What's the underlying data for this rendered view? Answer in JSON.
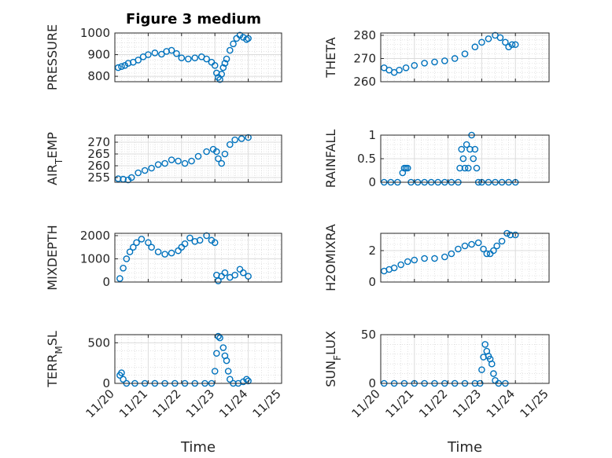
{
  "title": "Figure 3 medium",
  "chart_data": {
    "type": "scatter",
    "marker_color": "#0072BD",
    "x_ticks": [
      "11/20",
      "11/21",
      "11/22",
      "11/23",
      "11/24",
      "11/25"
    ],
    "xlabel": "Time",
    "grid": true,
    "panels": [
      {
        "ylabel": "PRESSURE",
        "ylim": [
          775,
          1000
        ],
        "yticks": [
          800,
          900,
          1000
        ],
        "points": [
          [
            0.1,
            840
          ],
          [
            0.2,
            845
          ],
          [
            0.3,
            850
          ],
          [
            0.4,
            860
          ],
          [
            0.55,
            865
          ],
          [
            0.7,
            875
          ],
          [
            0.85,
            890
          ],
          [
            1.0,
            900
          ],
          [
            1.2,
            908
          ],
          [
            1.4,
            902
          ],
          [
            1.55,
            915
          ],
          [
            1.7,
            920
          ],
          [
            1.85,
            905
          ],
          [
            2.0,
            885
          ],
          [
            2.2,
            880
          ],
          [
            2.4,
            885
          ],
          [
            2.6,
            890
          ],
          [
            2.75,
            880
          ],
          [
            2.9,
            865
          ],
          [
            3.0,
            850
          ],
          [
            3.05,
            815
          ],
          [
            3.1,
            795
          ],
          [
            3.15,
            785
          ],
          [
            3.2,
            810
          ],
          [
            3.25,
            840
          ],
          [
            3.3,
            860
          ],
          [
            3.35,
            880
          ],
          [
            3.45,
            920
          ],
          [
            3.55,
            950
          ],
          [
            3.65,
            975
          ],
          [
            3.75,
            990
          ],
          [
            3.85,
            980
          ],
          [
            3.95,
            970
          ],
          [
            4.0,
            975
          ]
        ]
      },
      {
        "ylabel": "THETA",
        "ylim": [
          260,
          281
        ],
        "yticks": [
          260,
          270,
          280
        ],
        "points": [
          [
            0.1,
            266
          ],
          [
            0.25,
            265
          ],
          [
            0.4,
            264
          ],
          [
            0.55,
            265
          ],
          [
            0.75,
            266
          ],
          [
            1.0,
            267
          ],
          [
            1.3,
            268
          ],
          [
            1.6,
            268.5
          ],
          [
            1.9,
            269
          ],
          [
            2.2,
            270
          ],
          [
            2.5,
            272
          ],
          [
            2.8,
            275
          ],
          [
            3.0,
            277
          ],
          [
            3.2,
            278.5
          ],
          [
            3.4,
            280
          ],
          [
            3.55,
            279
          ],
          [
            3.7,
            277
          ],
          [
            3.8,
            275
          ],
          [
            3.9,
            276
          ],
          [
            4.0,
            276
          ]
        ]
      },
      {
        "ylabel": "AIR_TEMP",
        "ylim": [
          253,
          273
        ],
        "yticks": [
          255,
          260,
          265,
          270
        ],
        "points": [
          [
            0.1,
            254.5
          ],
          [
            0.25,
            254.3
          ],
          [
            0.4,
            254.0
          ],
          [
            0.5,
            255
          ],
          [
            0.7,
            257
          ],
          [
            0.9,
            258
          ],
          [
            1.1,
            259
          ],
          [
            1.3,
            260.5
          ],
          [
            1.5,
            261
          ],
          [
            1.7,
            262.5
          ],
          [
            1.9,
            262
          ],
          [
            2.1,
            261
          ],
          [
            2.3,
            262
          ],
          [
            2.5,
            264
          ],
          [
            2.75,
            266
          ],
          [
            2.95,
            267
          ],
          [
            3.05,
            266
          ],
          [
            3.1,
            263
          ],
          [
            3.2,
            261
          ],
          [
            3.3,
            265
          ],
          [
            3.45,
            269
          ],
          [
            3.6,
            271
          ],
          [
            3.8,
            271.5
          ],
          [
            4.0,
            272
          ]
        ]
      },
      {
        "ylabel": "RAINFALL",
        "ylim": [
          0,
          1
        ],
        "yticks": [
          0,
          0.5,
          1
        ],
        "points": [
          [
            0.1,
            0
          ],
          [
            0.3,
            0
          ],
          [
            0.5,
            0
          ],
          [
            0.65,
            0.2
          ],
          [
            0.7,
            0.3
          ],
          [
            0.75,
            0.3
          ],
          [
            0.8,
            0.3
          ],
          [
            0.9,
            0
          ],
          [
            1.1,
            0
          ],
          [
            1.3,
            0
          ],
          [
            1.5,
            0
          ],
          [
            1.7,
            0
          ],
          [
            1.9,
            0
          ],
          [
            2.1,
            0
          ],
          [
            2.3,
            0
          ],
          [
            2.35,
            0.3
          ],
          [
            2.4,
            0.7
          ],
          [
            2.45,
            0.5
          ],
          [
            2.5,
            0.3
          ],
          [
            2.55,
            0.8
          ],
          [
            2.6,
            0.3
          ],
          [
            2.65,
            0.7
          ],
          [
            2.7,
            1.0
          ],
          [
            2.75,
            0.5
          ],
          [
            2.8,
            0.7
          ],
          [
            2.85,
            0.3
          ],
          [
            2.9,
            0
          ],
          [
            3.0,
            0
          ],
          [
            3.2,
            0
          ],
          [
            3.4,
            0
          ],
          [
            3.6,
            0
          ],
          [
            3.8,
            0
          ],
          [
            4.0,
            0
          ]
        ]
      },
      {
        "ylabel": "MIXDEPTH",
        "ylim": [
          0,
          2100
        ],
        "yticks": [
          0,
          1000,
          2000
        ],
        "points": [
          [
            0.15,
            150
          ],
          [
            0.25,
            600
          ],
          [
            0.35,
            1000
          ],
          [
            0.45,
            1300
          ],
          [
            0.55,
            1500
          ],
          [
            0.65,
            1700
          ],
          [
            0.8,
            1850
          ],
          [
            1.0,
            1700
          ],
          [
            1.1,
            1500
          ],
          [
            1.3,
            1300
          ],
          [
            1.5,
            1200
          ],
          [
            1.7,
            1250
          ],
          [
            1.9,
            1350
          ],
          [
            2.0,
            1500
          ],
          [
            2.1,
            1650
          ],
          [
            2.25,
            1900
          ],
          [
            2.4,
            1750
          ],
          [
            2.55,
            1800
          ],
          [
            2.75,
            2000
          ],
          [
            2.9,
            1800
          ],
          [
            3.0,
            1700
          ],
          [
            3.05,
            300
          ],
          [
            3.1,
            50
          ],
          [
            3.2,
            250
          ],
          [
            3.3,
            400
          ],
          [
            3.45,
            200
          ],
          [
            3.6,
            300
          ],
          [
            3.75,
            550
          ],
          [
            3.85,
            400
          ],
          [
            4.0,
            250
          ]
        ]
      },
      {
        "ylabel": "H2OMIXRA",
        "ylim": [
          0,
          3.1
        ],
        "yticks": [
          0,
          2
        ],
        "points": [
          [
            0.1,
            0.7
          ],
          [
            0.25,
            0.8
          ],
          [
            0.4,
            0.9
          ],
          [
            0.6,
            1.1
          ],
          [
            0.8,
            1.3
          ],
          [
            1.0,
            1.4
          ],
          [
            1.3,
            1.5
          ],
          [
            1.6,
            1.5
          ],
          [
            1.9,
            1.6
          ],
          [
            2.1,
            1.8
          ],
          [
            2.3,
            2.1
          ],
          [
            2.5,
            2.3
          ],
          [
            2.7,
            2.4
          ],
          [
            2.9,
            2.5
          ],
          [
            3.05,
            2.1
          ],
          [
            3.15,
            1.8
          ],
          [
            3.25,
            1.8
          ],
          [
            3.35,
            2.0
          ],
          [
            3.45,
            2.3
          ],
          [
            3.6,
            2.6
          ],
          [
            3.75,
            3.1
          ],
          [
            3.85,
            3.0
          ],
          [
            4.0,
            3.0
          ]
        ]
      },
      {
        "ylabel": "TERR_MSL",
        "ylim": [
          0,
          600
        ],
        "yticks": [
          0,
          500
        ],
        "points": [
          [
            0.15,
            100
          ],
          [
            0.2,
            130
          ],
          [
            0.25,
            50
          ],
          [
            0.35,
            0
          ],
          [
            0.6,
            0
          ],
          [
            0.9,
            0
          ],
          [
            1.2,
            0
          ],
          [
            1.5,
            0
          ],
          [
            1.8,
            0
          ],
          [
            2.1,
            0
          ],
          [
            2.4,
            0
          ],
          [
            2.7,
            0
          ],
          [
            2.9,
            0
          ],
          [
            3.0,
            150
          ],
          [
            3.05,
            370
          ],
          [
            3.1,
            580
          ],
          [
            3.15,
            560
          ],
          [
            3.25,
            440
          ],
          [
            3.3,
            340
          ],
          [
            3.35,
            280
          ],
          [
            3.4,
            150
          ],
          [
            3.45,
            50
          ],
          [
            3.55,
            0
          ],
          [
            3.7,
            0
          ],
          [
            3.85,
            20
          ],
          [
            3.95,
            50
          ],
          [
            4.0,
            30
          ]
        ]
      },
      {
        "ylabel": "SUN_FLUX",
        "ylim": [
          0,
          50
        ],
        "yticks": [
          0,
          50
        ],
        "points": [
          [
            0.1,
            0
          ],
          [
            0.4,
            0
          ],
          [
            0.7,
            0
          ],
          [
            1.0,
            0
          ],
          [
            1.3,
            0
          ],
          [
            1.6,
            0
          ],
          [
            1.9,
            0
          ],
          [
            2.2,
            0
          ],
          [
            2.5,
            0
          ],
          [
            2.8,
            0
          ],
          [
            2.95,
            0
          ],
          [
            3.0,
            14
          ],
          [
            3.05,
            27
          ],
          [
            3.1,
            40
          ],
          [
            3.15,
            33
          ],
          [
            3.2,
            28
          ],
          [
            3.25,
            25
          ],
          [
            3.3,
            20
          ],
          [
            3.35,
            10
          ],
          [
            3.4,
            3
          ],
          [
            3.5,
            0
          ],
          [
            3.7,
            0
          ]
        ]
      }
    ]
  }
}
